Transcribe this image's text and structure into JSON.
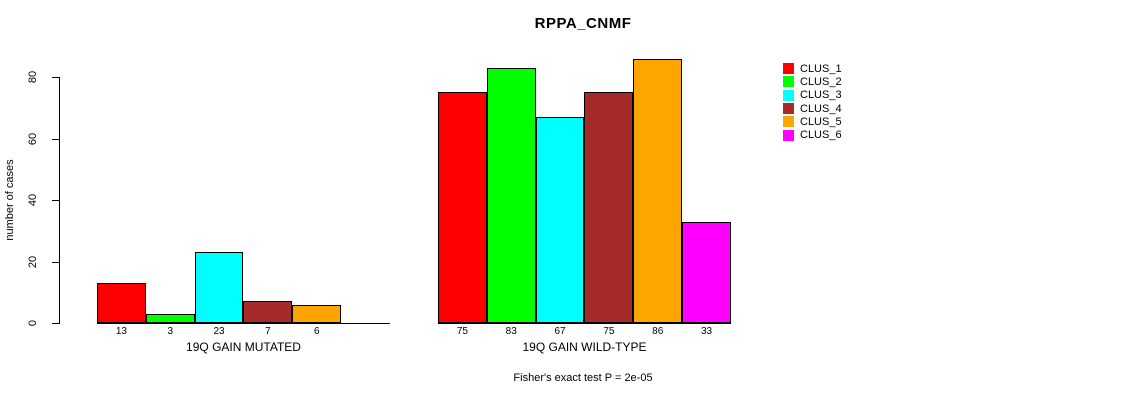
{
  "title": "RPPA_CNMF",
  "chart_data": {
    "type": "bar",
    "title": "RPPA_CNMF",
    "xlabel": "",
    "ylabel": "number of cases",
    "ylim": [
      0,
      86
    ],
    "yticks": [
      0,
      20,
      40,
      60,
      80
    ],
    "grid": false,
    "legend_position": "right",
    "series_names": [
      "CLUS_1",
      "CLUS_2",
      "CLUS_3",
      "CLUS_4",
      "CLUS_5",
      "CLUS_6"
    ],
    "series_colors": [
      "#ff0000",
      "#00ff00",
      "#00ffff",
      "#a52a2a",
      "#ffa500",
      "#ff00ff"
    ],
    "groups": [
      {
        "label": "19Q GAIN MUTATED",
        "values": [
          13,
          3,
          23,
          7,
          6,
          0
        ],
        "bar_labels": [
          "13",
          "3",
          "23",
          "7",
          "6",
          ""
        ]
      },
      {
        "label": "19Q GAIN WILD-TYPE",
        "values": [
          75,
          83,
          67,
          75,
          86,
          33
        ],
        "bar_labels": [
          "75",
          "83",
          "67",
          "75",
          "86",
          "33"
        ]
      }
    ],
    "annotation": "Fisher's exact test P = 2e-05"
  }
}
